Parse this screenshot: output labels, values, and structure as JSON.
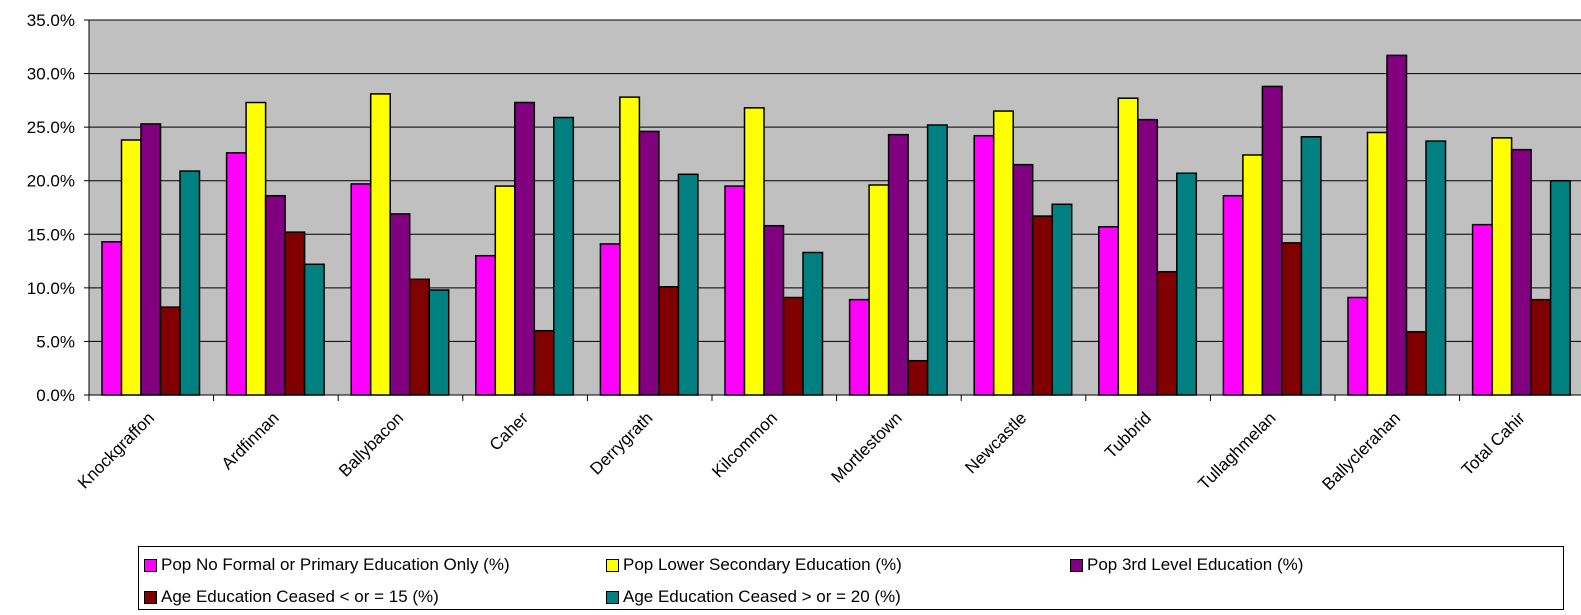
{
  "chart_data": {
    "type": "bar",
    "categories": [
      "Knockgraffon",
      "Ardfinnan",
      "Ballybacon",
      "Caher",
      "Derrygrath",
      "Kilcommon",
      "Mortlestown",
      "Newcastle",
      "Tubbrid",
      "Tullaghmelan",
      "Ballyclerahan",
      "Total Cahir"
    ],
    "series": [
      {
        "name": "Pop No Formal or Primary Education Only (%)",
        "color": "#FF00FF",
        "values": [
          14.3,
          22.6,
          19.7,
          13.0,
          14.1,
          19.5,
          8.9,
          24.2,
          15.7,
          18.6,
          9.1,
          15.9
        ]
      },
      {
        "name": "Pop Lower Secondary Education (%)",
        "color": "#FFFF00",
        "values": [
          23.8,
          27.3,
          28.1,
          19.5,
          27.8,
          26.8,
          19.6,
          26.5,
          27.7,
          22.4,
          24.5,
          24.0
        ]
      },
      {
        "name": "Pop 3rd Level Education (%)",
        "color": "#800080",
        "values": [
          25.3,
          18.6,
          16.9,
          27.3,
          24.6,
          15.8,
          24.3,
          21.5,
          25.7,
          28.8,
          31.7,
          22.9
        ]
      },
      {
        "name": "Age Education Ceased < or = 15 (%)",
        "color": "#800000",
        "values": [
          8.2,
          15.2,
          10.8,
          6.0,
          10.1,
          9.1,
          3.2,
          16.7,
          11.5,
          14.2,
          5.9,
          8.9
        ]
      },
      {
        "name": "Age Education Ceased > or = 20 (%)",
        "color": "#008080",
        "values": [
          20.9,
          12.2,
          9.8,
          25.9,
          20.6,
          13.3,
          25.2,
          17.8,
          20.7,
          24.1,
          23.7,
          20.0
        ]
      }
    ],
    "ylim": [
      0,
      35
    ],
    "yticks": [
      "0.0%",
      "5.0%",
      "10.0%",
      "15.0%",
      "20.0%",
      "25.0%",
      "30.0%",
      "35.0%"
    ],
    "grid": true,
    "plot_background": "#C0C0C0",
    "legend_placement": "bottom"
  }
}
